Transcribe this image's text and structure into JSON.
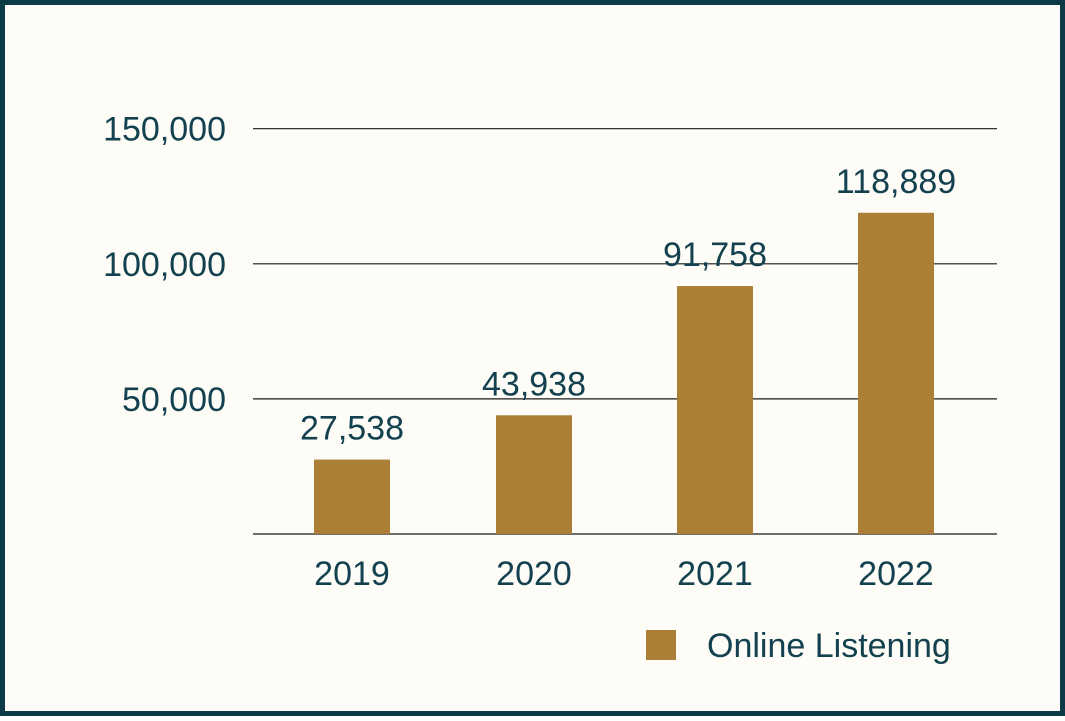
{
  "colors": {
    "frame": "#0d3a47",
    "background": "#fdfcf6",
    "bar": "#ab7f36",
    "text": "#13414f",
    "grid": "#1a1a1a"
  },
  "chart_data": {
    "type": "bar",
    "title": "",
    "xlabel": "",
    "ylabel": "",
    "categories": [
      "2019",
      "2020",
      "2021",
      "2022"
    ],
    "series": [
      {
        "name": "Online Listening",
        "values": [
          27538,
          43938,
          91758,
          118889
        ],
        "labels": [
          "27,538",
          "43,938",
          "91,758",
          "118,889"
        ]
      }
    ],
    "y_ticks": [
      50000,
      100000,
      150000
    ],
    "y_tick_labels": [
      "50,000",
      "100,000",
      "150,000"
    ],
    "ylim": [
      0,
      150000
    ],
    "grid": true,
    "legend_position": "bottom-right"
  }
}
